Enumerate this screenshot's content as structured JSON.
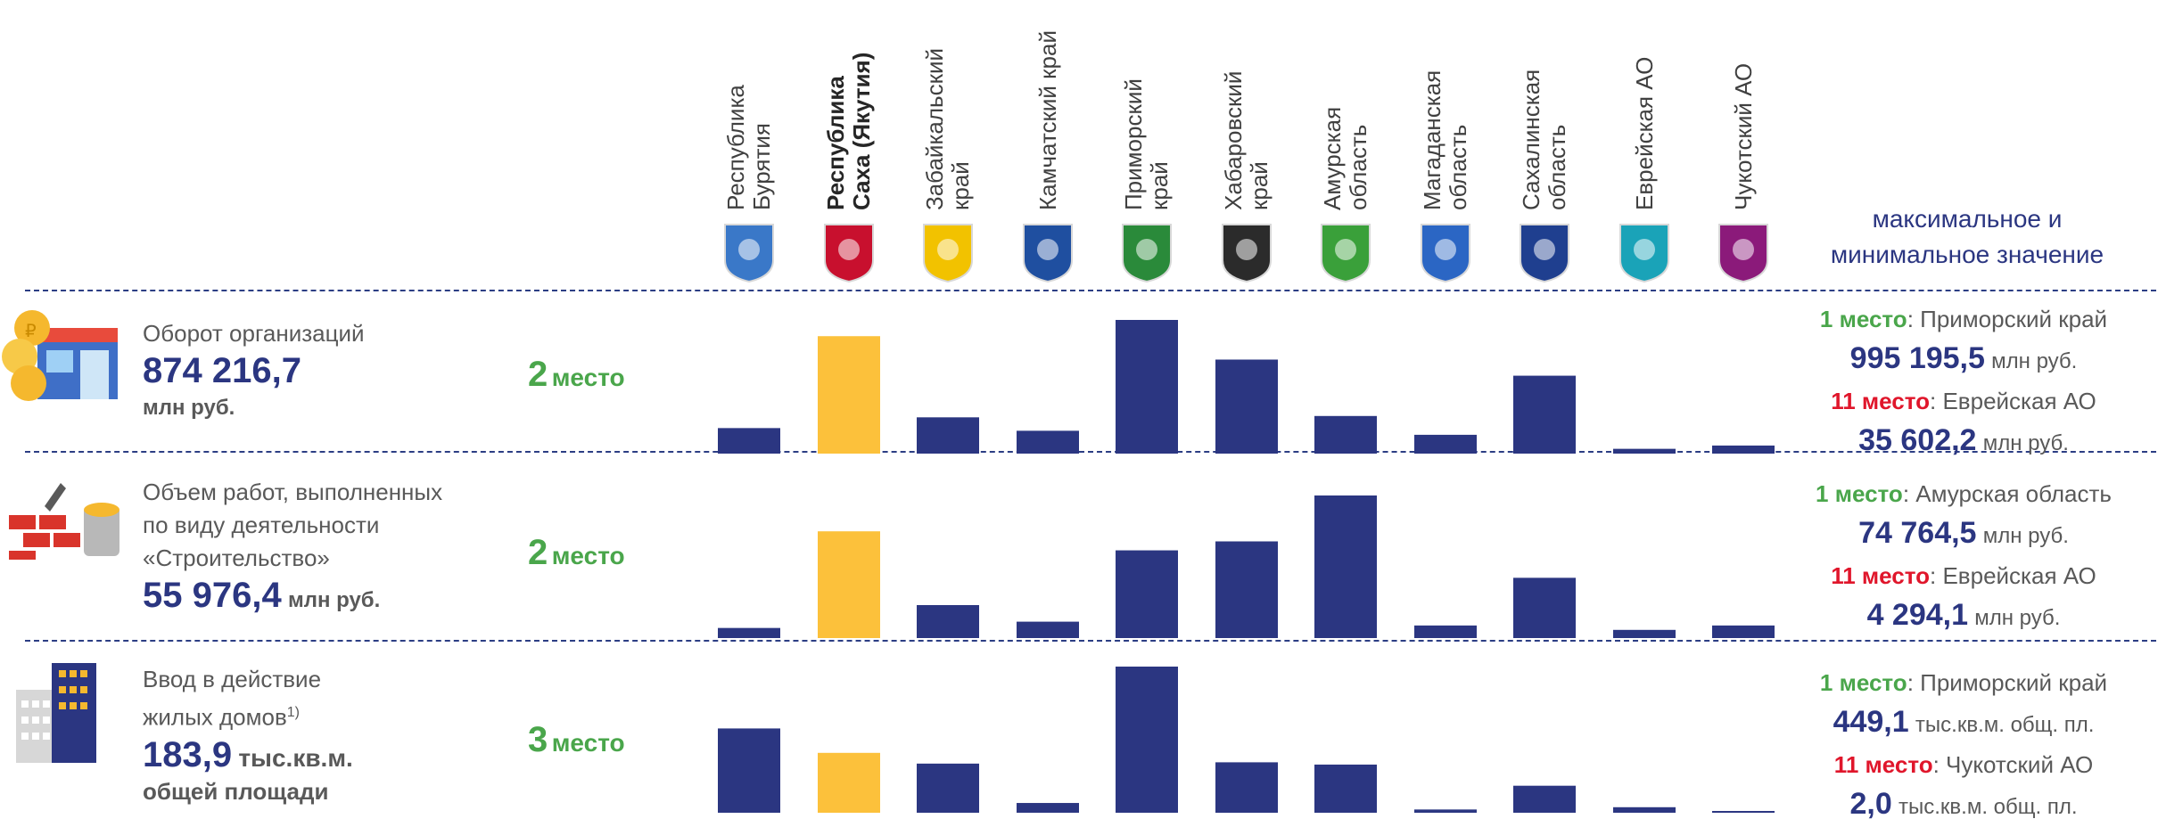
{
  "columns": [
    {
      "name": "Республика Бурятия",
      "lines": [
        "Республика",
        "Бурятия"
      ],
      "bold": false,
      "emblem_color": "#3a78c8"
    },
    {
      "name": "Республика Саха (Якутия)",
      "lines": [
        "Республика",
        "Саха (Якутия)"
      ],
      "bold": true,
      "emblem_color": "#c8102e"
    },
    {
      "name": "Забайкальский край",
      "lines": [
        "Забайкальский",
        "край"
      ],
      "bold": false,
      "emblem_color": "#f2c200"
    },
    {
      "name": "Камчатский край",
      "lines": [
        "Камчатский край"
      ],
      "bold": false,
      "emblem_color": "#1f4fa0"
    },
    {
      "name": "Приморский край",
      "lines": [
        "Приморский",
        "край"
      ],
      "bold": false,
      "emblem_color": "#2a8a3a"
    },
    {
      "name": "Хабаровский край",
      "lines": [
        "Хабаровский",
        "край"
      ],
      "bold": false,
      "emblem_color": "#2b2b2b"
    },
    {
      "name": "Амурская область",
      "lines": [
        "Амурская",
        "область"
      ],
      "bold": false,
      "emblem_color": "#3aa03a"
    },
    {
      "name": "Магаданская область",
      "lines": [
        "Магаданская",
        "область"
      ],
      "bold": false,
      "emblem_color": "#2b66c4"
    },
    {
      "name": "Сахалинская область",
      "lines": [
        "Сахалинская",
        "область"
      ],
      "bold": false,
      "emblem_color": "#1f3f8f"
    },
    {
      "name": "Еврейская АО",
      "lines": [
        "Еврейская АО"
      ],
      "bold": false,
      "emblem_color": "#1aa3b8"
    },
    {
      "name": "Чукотский АО",
      "lines": [
        "Чукотский АО"
      ],
      "bold": false,
      "emblem_color": "#8b1a7a"
    }
  ],
  "header_right": {
    "line1": "максимальное и",
    "line2": "минимальное значение"
  },
  "colors": {
    "bar": "#2b3681",
    "highlight": "#fcc13b",
    "green": "#4aa64b",
    "red": "#e0162b",
    "navy": "#2b3681"
  },
  "rows": [
    {
      "icon": "shop-coins-icon",
      "label_lines": [
        "Оборот организаций"
      ],
      "value": "874 216,7",
      "unit": "млн руб.",
      "rank_num": "2",
      "rank_word": "место",
      "max_place": "1 место",
      "max_region": ": Приморский край",
      "max_value": "995 195,5",
      "max_unit": "млн руб.",
      "min_place": "11 место",
      "min_region": ": Еврейская АО",
      "min_value": "35 602,2",
      "min_unit": "млн руб."
    },
    {
      "icon": "bricks-trowel-icon",
      "label_lines": [
        "Объем работ, выполненных",
        "по виду деятельности",
        "«Строительство»"
      ],
      "value": "55 976,4",
      "unit": "млн руб.",
      "rank_num": "2",
      "rank_word": "место",
      "max_place": "1 место",
      "max_region": ": Амурская область",
      "max_value": "74 764,5",
      "max_unit": "млн руб.",
      "min_place": "11 место",
      "min_region": ": Еврейская АО",
      "min_value": "4 294,1",
      "min_unit": "млн руб."
    },
    {
      "icon": "apartment-building-icon",
      "label_lines": [
        "Ввод в действие",
        "жилых домов"
      ],
      "footnote": "1)",
      "value": "183,9",
      "unit": "тыс.кв.м.",
      "unit2": "общей площади",
      "rank_num": "3",
      "rank_word": "место",
      "max_place": "1 место",
      "max_region": ": Приморский край",
      "max_value": "449,1",
      "max_unit": "тыс.кв.м. общ. пл.",
      "min_place": "11 место",
      "min_region": ": Чукотский АО",
      "min_value": "2,0",
      "min_unit": "тыс.кв.м. общ. пл."
    }
  ],
  "chart_data": [
    {
      "type": "bar",
      "title": "Оборот организаций",
      "categories": [
        "Республика Бурятия",
        "Республика Саха (Якутия)",
        "Забайкальский край",
        "Камчатский край",
        "Приморский край",
        "Хабаровский край",
        "Амурская область",
        "Магаданская область",
        "Сахалинская область",
        "Еврейская АО",
        "Чукотский АО"
      ],
      "values": [
        190000,
        874216.7,
        270000,
        170000,
        995195.5,
        700000,
        280000,
        140000,
        580000,
        35602.2,
        60000
      ],
      "highlight_index": 1,
      "ylim": [
        0,
        995195.5
      ]
    },
    {
      "type": "bar",
      "title": "Объем работ, выполненных по виду деятельности «Строительство»",
      "categories": [
        "Республика Бурятия",
        "Республика Саха (Якутия)",
        "Забайкальский край",
        "Камчатский край",
        "Приморский край",
        "Хабаровский край",
        "Амурская область",
        "Магаданская область",
        "Сахалинская область",
        "Еврейская АО",
        "Чукотский АО"
      ],
      "values": [
        5300,
        55976.4,
        17300,
        8600,
        46000,
        50700,
        74764.5,
        6600,
        31600,
        4294.1,
        6600
      ],
      "highlight_index": 1,
      "ylim": [
        0,
        74764.5
      ]
    },
    {
      "type": "bar",
      "title": "Ввод в действие жилых домов",
      "categories": [
        "Республика Бурятия",
        "Республика Саха (Якутия)",
        "Забайкальский край",
        "Камчатский край",
        "Приморский край",
        "Хабаровский край",
        "Амурская область",
        "Магаданская область",
        "Сахалинская область",
        "Еврейская АО",
        "Чукотский АО"
      ],
      "values": [
        259,
        184,
        151,
        30,
        449.1,
        155,
        148,
        10,
        83,
        17,
        2.0
      ],
      "highlight_index": 1,
      "ylim": [
        0,
        449.1
      ]
    }
  ]
}
